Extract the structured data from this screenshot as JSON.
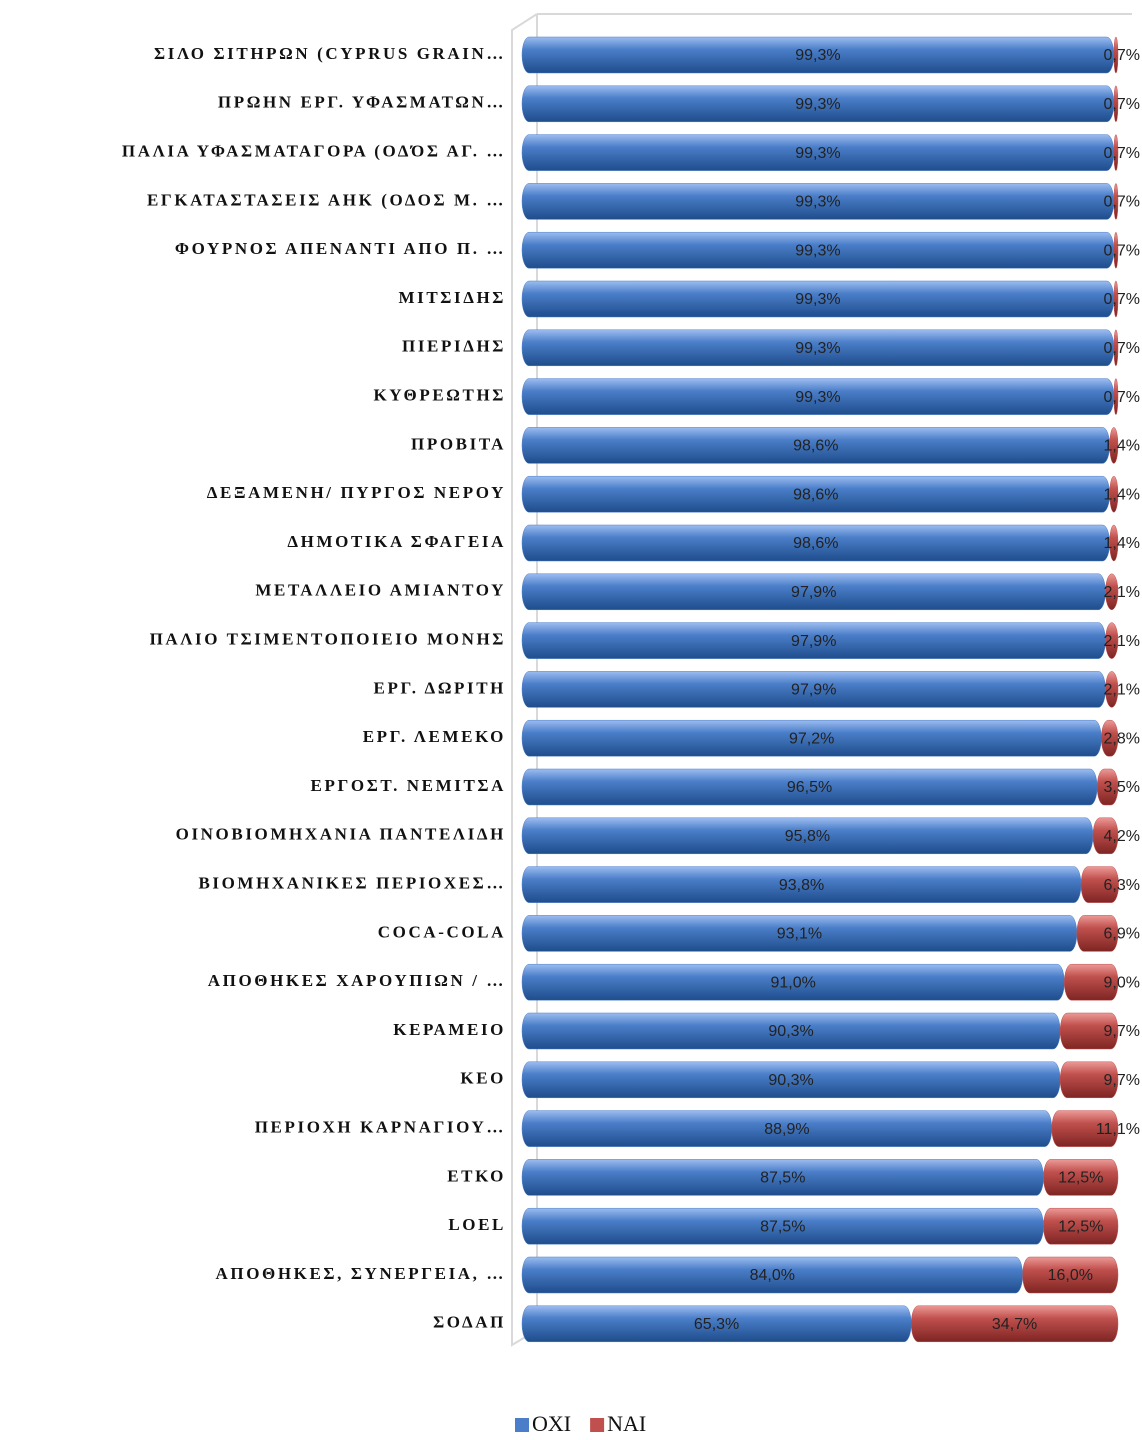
{
  "chart_data": {
    "type": "stacked-bar-horizontal",
    "categories": [
      "ΣΙΛΟ ΣΙΤΗΡΩΝ (CYPRUS GRAIN…",
      "ΠΡΩΗΝ ΕΡΓ. ΥΦΑΣΜΑΤΩΝ…",
      "ΠΑΛΙΑ ΥΦΑΣΜΑΤΑΓΟΡΑ (ΟΔΌΣ ΑΓ. …",
      "ΕΓΚΑΤΑΣΤΑΣΕΙΣ ΑΗΚ (ΟΔΟΣ Μ. …",
      "ΦΟΥΡΝΟΣ ΑΠΕΝΑΝΤΙ ΑΠΟ Π. …",
      "ΜΙΤΣΙΔΗΣ",
      "ΠΙΕΡΙΔΗΣ",
      "ΚΥΘΡΕΩΤΗΣ",
      "ΠΡΟΒΙΤΑ",
      "ΔΕΞΑΜΕΝΗ/ ΠΥΡΓΟΣ ΝΕΡΟΥ",
      "ΔΗΜΟΤΙΚΑ ΣΦΑΓΕΙΑ",
      "ΜΕΤΑΛΛΕΙΟ ΑΜΙΑΝΤΟΥ",
      "ΠΑΛΙΟ ΤΣΙΜΕΝΤΟΠΟΙΕΙΟ ΜΟΝΗΣ",
      "ΕΡΓ. ΔΩΡΙΤΗ",
      "ΕΡΓ. ΛΕΜΕΚΟ",
      "ΕΡΓΟΣΤ. ΝΕΜΙΤΣΑ",
      "ΟΙΝΟΒΙΟΜΗΧΑΝΙΑ ΠΑΝΤΕΛΙΔΗ",
      "ΒΙΟΜΗΧΑΝΙΚΕΣ ΠΕΡΙΟΧΕΣ…",
      "COCA-COLA",
      "ΑΠΟΘΗΚΕΣ ΧΑΡΟΥΠΙΩΝ / …",
      "ΚΕΡΑΜΕΙΟ",
      "ΚΕΟ",
      "ΠΕΡΙΟΧΗ ΚΑΡΝΑΓΙΟΥ…",
      "ΕΤΚΟ",
      "LOEL",
      "ΑΠΟΘΗΚΕΣ, ΣΥΝΕΡΓΕΙΑ, …",
      "ΣΟΔΑΠ"
    ],
    "series": [
      {
        "name": "ΟΧΙ",
        "color": "#4a7ec8",
        "values": [
          99.3,
          99.3,
          99.3,
          99.3,
          99.3,
          99.3,
          99.3,
          99.3,
          98.6,
          98.6,
          98.6,
          97.9,
          97.9,
          97.9,
          97.2,
          96.5,
          95.8,
          93.8,
          93.1,
          91.0,
          90.3,
          90.3,
          88.9,
          87.5,
          87.5,
          84.0,
          65.3
        ],
        "value_labels": [
          "99,3%",
          "99,3%",
          "99,3%",
          "99,3%",
          "99,3%",
          "99,3%",
          "99,3%",
          "99,3%",
          "98,6%",
          "98,6%",
          "98,6%",
          "97,9%",
          "97,9%",
          "97,9%",
          "97,2%",
          "96,5%",
          "95,8%",
          "93,8%",
          "93,1%",
          "91,0%",
          "90,3%",
          "90,3%",
          "88,9%",
          "87,5%",
          "87,5%",
          "84,0%",
          "65,3%"
        ]
      },
      {
        "name": "ΝΑΙ",
        "color": "#c0504d",
        "values": [
          0.7,
          0.7,
          0.7,
          0.7,
          0.7,
          0.7,
          0.7,
          0.7,
          1.4,
          1.4,
          1.4,
          2.1,
          2.1,
          2.1,
          2.8,
          3.5,
          4.2,
          6.3,
          6.9,
          9.0,
          9.7,
          9.7,
          11.1,
          12.5,
          12.5,
          16.0,
          34.7
        ],
        "value_labels": [
          "0,7%",
          "0,7%",
          "0,7%",
          "0,7%",
          "0,7%",
          "0,7%",
          "0,7%",
          "0,7%",
          "1,4%",
          "1,4%",
          "1,4%",
          "2,1%",
          "2,1%",
          "2,1%",
          "2,8%",
          "3,5%",
          "4,2%",
          "6,3%",
          "6,9%",
          "9,0%",
          "9,7%",
          "9,7%",
          "11,1%",
          "12,5%",
          "12,5%",
          "16,0%",
          "34,7%"
        ]
      }
    ],
    "xlim": [
      0,
      100
    ],
    "legend": "bottom"
  }
}
